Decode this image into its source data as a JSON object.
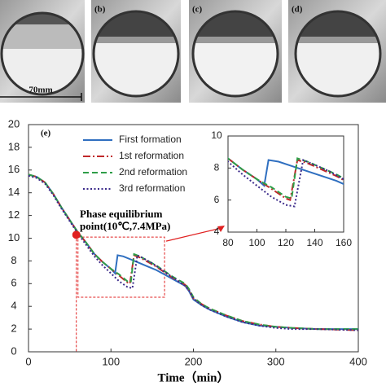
{
  "panels": {
    "labels": [
      "(b)",
      "(c)",
      "(d)"
    ],
    "scale_bar": "70mm"
  },
  "chart_data": {
    "type": "line",
    "panel_label": "(e)",
    "x_label": "Time（min）",
    "annotation": [
      "Phase equilibrium",
      "point(10℃,7.4MPa)"
    ],
    "marker": {
      "x": 58,
      "y": 10.3,
      "color": "#e02020"
    },
    "highlight": {
      "xlim": [
        60,
        165
      ],
      "ylim": [
        4.8,
        10.1
      ],
      "color": "#e02020"
    },
    "xlim": [
      0,
      400
    ],
    "xticks": [
      0,
      100,
      200,
      300,
      400
    ],
    "ylim": [
      0,
      20
    ],
    "yticks": [
      0,
      2,
      4,
      6,
      8,
      10,
      12,
      14,
      16,
      18,
      20
    ],
    "inset": {
      "xlim": [
        80,
        160
      ],
      "ylim": [
        4,
        10
      ],
      "xticks": [
        80,
        100,
        120,
        140,
        160
      ],
      "yticks": [
        4,
        6,
        8,
        10
      ]
    },
    "series": [
      {
        "name": "First formation",
        "color": "#2f6fc0",
        "dash": "solid",
        "x": [
          0,
          10,
          20,
          30,
          40,
          50,
          60,
          70,
          80,
          90,
          100,
          105,
          108,
          115,
          125,
          135,
          145,
          155,
          165,
          175,
          185,
          190,
          195,
          200,
          210,
          220,
          240,
          260,
          280,
          300,
          320,
          350,
          400
        ],
        "values": [
          15.6,
          15.4,
          14.9,
          13.9,
          12.7,
          11.6,
          10.5,
          9.6,
          8.6,
          7.9,
          7.3,
          6.9,
          8.5,
          8.4,
          8.1,
          7.8,
          7.5,
          7.2,
          6.8,
          6.4,
          6.0,
          5.8,
          5.3,
          4.6,
          4.1,
          3.7,
          3.1,
          2.6,
          2.3,
          2.2,
          2.1,
          2.0,
          2.0
        ]
      },
      {
        "name": "1st reformation",
        "color": "#c0282a",
        "dash": "dashdot",
        "x": [
          0,
          10,
          20,
          30,
          40,
          50,
          60,
          70,
          80,
          90,
          100,
          110,
          120,
          123,
          128,
          135,
          145,
          155,
          165,
          175,
          185,
          190,
          195,
          200,
          210,
          220,
          240,
          260,
          280,
          300,
          320,
          350,
          400
        ],
        "values": [
          15.6,
          15.4,
          14.9,
          13.9,
          12.7,
          11.6,
          10.5,
          9.6,
          8.6,
          7.9,
          7.3,
          6.7,
          6.1,
          6.0,
          8.5,
          8.3,
          7.9,
          7.5,
          7.0,
          6.5,
          6.1,
          5.9,
          5.4,
          4.7,
          4.2,
          3.8,
          3.2,
          2.7,
          2.4,
          2.2,
          2.1,
          2.0,
          1.9
        ]
      },
      {
        "name": "2nd reformation",
        "color": "#2e9e48",
        "dash": "dashed",
        "x": [
          0,
          10,
          20,
          30,
          40,
          50,
          60,
          70,
          80,
          90,
          100,
          110,
          120,
          124,
          128,
          135,
          145,
          155,
          165,
          175,
          185,
          190,
          195,
          200,
          210,
          220,
          240,
          260,
          280,
          300,
          320,
          350,
          400
        ],
        "values": [
          15.6,
          15.4,
          14.9,
          13.9,
          12.7,
          11.6,
          10.5,
          9.6,
          8.6,
          7.9,
          7.3,
          6.8,
          6.2,
          6.1,
          8.6,
          8.4,
          8.0,
          7.6,
          7.1,
          6.6,
          6.2,
          6.0,
          5.5,
          4.8,
          4.2,
          3.8,
          3.2,
          2.7,
          2.4,
          2.2,
          2.1,
          2.0,
          2.0
        ]
      },
      {
        "name": "3rd reformation",
        "color": "#3b2a8a",
        "dash": "dotted",
        "x": [
          0,
          10,
          20,
          30,
          40,
          50,
          60,
          70,
          80,
          90,
          100,
          110,
          120,
          126,
          132,
          140,
          150,
          160,
          170,
          180,
          190,
          195,
          200,
          210,
          220,
          240,
          260,
          280,
          300,
          320,
          350,
          400
        ],
        "values": [
          15.5,
          15.3,
          14.8,
          13.8,
          12.6,
          11.5,
          10.4,
          9.4,
          8.4,
          7.6,
          6.9,
          6.2,
          5.7,
          5.6,
          8.5,
          8.2,
          7.8,
          7.3,
          6.8,
          6.3,
          5.8,
          5.4,
          4.7,
          4.1,
          3.7,
          3.1,
          2.6,
          2.3,
          2.1,
          2.0,
          2.0,
          1.9
        ]
      }
    ]
  }
}
